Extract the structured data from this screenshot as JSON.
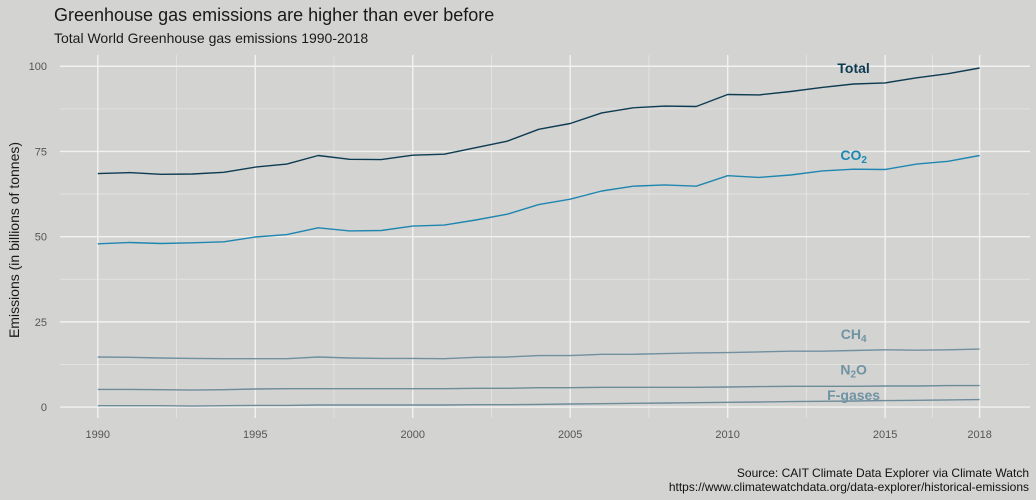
{
  "title": "Greenhouse gas emissions are higher than ever before",
  "subtitle": "Total World Greenhouse gas emissions 1990-2018",
  "source": {
    "line1": "Source: CAIT Climate Data Explorer via Climate Watch",
    "line2": "https://www.climatewatchdata.org/data-explorer/historical-emissions"
  },
  "chart_data": {
    "type": "line",
    "title": "Greenhouse gas emissions are higher than ever before",
    "subtitle": "Total World Greenhouse gas emissions 1990-2018",
    "xlabel": "",
    "ylabel": "Emissions (in billions of tonnes)",
    "xlim": [
      1988.8,
      2019.6
    ],
    "ylim": [
      -3.2,
      103.3
    ],
    "x_ticks": [
      "1990",
      "1995",
      "2000",
      "2005",
      "2010",
      "2015",
      "2018"
    ],
    "y_ticks": [
      "0",
      "25",
      "50",
      "75",
      "100"
    ],
    "grid": true,
    "legend": "direct labels",
    "x": [
      1990,
      1991,
      1992,
      1993,
      1994,
      1995,
      1996,
      1997,
      1998,
      1999,
      2000,
      2001,
      2002,
      2003,
      2004,
      2005,
      2006,
      2007,
      2008,
      2009,
      2010,
      2011,
      2012,
      2013,
      2014,
      2015,
      2016,
      2017,
      2018
    ],
    "series": [
      {
        "name": "Total",
        "label_main": "Total",
        "label_sub": "",
        "color": "#0d3b52",
        "label_color": "#0d3b52",
        "label_x": 2014,
        "label_y": 99.5,
        "values": [
          68.5,
          68.8,
          68.3,
          68.4,
          68.9,
          70.4,
          71.3,
          73.8,
          72.7,
          72.6,
          73.9,
          74.2,
          76.1,
          78.0,
          81.5,
          83.2,
          86.3,
          87.8,
          88.3,
          88.2,
          91.7,
          91.6,
          92.6,
          93.8,
          94.8,
          95.1,
          96.6,
          97.8,
          99.5
        ]
      },
      {
        "name": "CO2",
        "label_main": "CO",
        "label_sub": "2",
        "color": "#1f86b0",
        "label_color": "#1a8ab5",
        "label_x": 2014,
        "label_y": 74,
        "values": [
          47.9,
          48.3,
          48.0,
          48.2,
          48.5,
          49.9,
          50.6,
          52.6,
          51.7,
          51.8,
          53.1,
          53.4,
          54.9,
          56.6,
          59.4,
          61.0,
          63.4,
          64.8,
          65.2,
          64.8,
          67.9,
          67.4,
          68.1,
          69.3,
          69.8,
          69.7,
          71.3,
          72.1,
          73.8
        ]
      },
      {
        "name": "CH4",
        "label_main": "CH",
        "label_sub": "4",
        "color": "#7090a0",
        "label_color": "#6f93a3",
        "label_x": 2014,
        "label_y": 21.5,
        "values": [
          14.7,
          14.6,
          14.4,
          14.3,
          14.2,
          14.2,
          14.2,
          14.7,
          14.4,
          14.3,
          14.3,
          14.2,
          14.6,
          14.7,
          15.1,
          15.1,
          15.5,
          15.5,
          15.7,
          15.9,
          16.0,
          16.2,
          16.4,
          16.4,
          16.6,
          16.8,
          16.7,
          16.8,
          17.0
        ]
      },
      {
        "name": "N2O",
        "label_main": "N",
        "label_sub": "2",
        "label_tail": "O",
        "color": "#6d8c9a",
        "label_color": "#6f93a3",
        "label_x": 2014,
        "label_y": 11,
        "values": [
          5.2,
          5.2,
          5.1,
          5.0,
          5.1,
          5.3,
          5.4,
          5.4,
          5.4,
          5.4,
          5.4,
          5.4,
          5.5,
          5.5,
          5.7,
          5.7,
          5.8,
          5.8,
          5.8,
          5.8,
          5.9,
          6.0,
          6.1,
          6.1,
          6.1,
          6.2,
          6.2,
          6.3,
          6.3
        ]
      },
      {
        "name": "F-gases",
        "label_main": "F-gases",
        "label_sub": "",
        "color": "#6d8c9a",
        "label_color": "#6f93a3",
        "label_x": 2014,
        "label_y": 3.5,
        "values": [
          0.4,
          0.4,
          0.4,
          0.3,
          0.4,
          0.5,
          0.5,
          0.6,
          0.6,
          0.6,
          0.6,
          0.6,
          0.7,
          0.7,
          0.8,
          0.9,
          1.0,
          1.1,
          1.2,
          1.3,
          1.4,
          1.5,
          1.6,
          1.7,
          1.8,
          1.9,
          2.0,
          2.1,
          2.2
        ]
      }
    ]
  }
}
